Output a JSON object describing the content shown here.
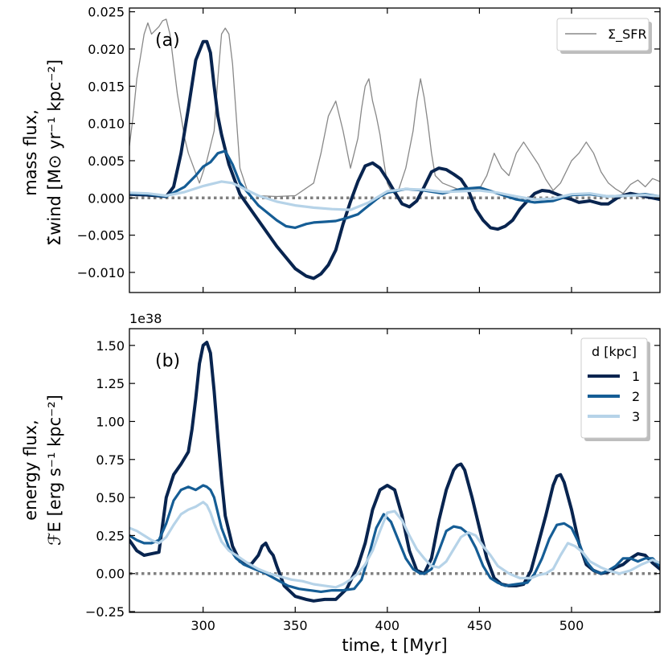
{
  "chart_data": [
    {
      "type": "line",
      "panel_label": "(a)",
      "ylabel_line1": "mass flux,",
      "ylabel_line2": "Σ̇wind [M⊙ yr⁻¹ kpc⁻²]",
      "xlim": [
        260,
        548
      ],
      "ylim": [
        -0.0127,
        0.0255
      ],
      "yticks": [
        -0.01,
        -0.005,
        0.0,
        0.005,
        0.01,
        0.015,
        0.02,
        0.025
      ],
      "ytick_labels": [
        "−0.010",
        "−0.005",
        "0.000",
        "0.005",
        "0.010",
        "0.015",
        "0.020",
        "0.025"
      ],
      "xticks": [
        300,
        350,
        400,
        450,
        500
      ],
      "zero_line": {
        "y": 0,
        "style": "dotted",
        "color": "#808080"
      },
      "legend": {
        "location": "top-right",
        "entries": [
          {
            "label": "Σ_SFR",
            "color": "#888888"
          }
        ]
      },
      "series": [
        {
          "name": "SFR",
          "color": "#888888",
          "width": 1.3,
          "x": [
            260,
            262,
            264,
            266,
            268,
            270,
            272,
            274,
            276,
            278,
            280,
            282,
            284,
            286,
            288,
            290,
            292,
            295,
            298,
            302,
            306,
            308,
            310,
            312,
            314,
            316,
            318,
            320,
            324,
            330,
            340,
            350,
            360,
            364,
            368,
            372,
            376,
            380,
            384,
            386,
            388,
            390,
            392,
            394,
            396,
            398,
            400,
            402,
            404,
            406,
            410,
            414,
            416,
            418,
            420,
            422,
            424,
            426,
            430,
            440,
            450,
            454,
            458,
            462,
            466,
            470,
            474,
            478,
            482,
            486,
            490,
            494,
            500,
            504,
            508,
            512,
            516,
            520,
            524,
            528,
            532,
            536,
            540,
            544,
            548
          ],
          "y": [
            0.007,
            0.011,
            0.016,
            0.019,
            0.022,
            0.0235,
            0.022,
            0.0225,
            0.023,
            0.0238,
            0.024,
            0.022,
            0.018,
            0.014,
            0.011,
            0.008,
            0.006,
            0.004,
            0.002,
            0.005,
            0.009,
            0.016,
            0.022,
            0.0228,
            0.022,
            0.018,
            0.011,
            0.004,
            0.001,
            0.0003,
            0.0002,
            0.0003,
            0.002,
            0.006,
            0.011,
            0.013,
            0.009,
            0.004,
            0.008,
            0.012,
            0.015,
            0.016,
            0.013,
            0.011,
            0.0085,
            0.005,
            0.002,
            0.001,
            0.0005,
            0.001,
            0.004,
            0.009,
            0.013,
            0.016,
            0.0135,
            0.01,
            0.006,
            0.003,
            0.002,
            0.001,
            0.0012,
            0.003,
            0.006,
            0.004,
            0.003,
            0.006,
            0.0075,
            0.006,
            0.0045,
            0.0025,
            0.001,
            0.002,
            0.005,
            0.006,
            0.0075,
            0.006,
            0.0035,
            0.002,
            0.0012,
            0.0006,
            0.0018,
            0.0024,
            0.0015,
            0.0026,
            0.0022
          ]
        },
        {
          "name": "d = 1 kpc",
          "color": "#08244f",
          "width": 4,
          "x": [
            260,
            270,
            280,
            284,
            288,
            292,
            296,
            300,
            302,
            304,
            306,
            308,
            310,
            314,
            320,
            330,
            340,
            350,
            356,
            360,
            364,
            368,
            372,
            376,
            380,
            384,
            388,
            392,
            396,
            400,
            404,
            408,
            412,
            416,
            420,
            424,
            428,
            432,
            436,
            440,
            444,
            448,
            452,
            456,
            460,
            464,
            468,
            472,
            476,
            480,
            484,
            488,
            492,
            496,
            500,
            504,
            510,
            516,
            520,
            526,
            532,
            540,
            548
          ],
          "y": [
            0.0005,
            0.0004,
            0.0002,
            0.0015,
            0.006,
            0.012,
            0.0185,
            0.021,
            0.021,
            0.0195,
            0.015,
            0.011,
            0.0085,
            0.0045,
            0.0005,
            -0.003,
            -0.0065,
            -0.0095,
            -0.0105,
            -0.0108,
            -0.0102,
            -0.009,
            -0.007,
            -0.0035,
            -0.0005,
            0.0022,
            0.0043,
            0.0047,
            0.004,
            0.0025,
            0.0008,
            -0.0008,
            -0.0012,
            -0.0004,
            0.0015,
            0.0035,
            0.004,
            0.0038,
            0.0032,
            0.0025,
            0.001,
            -0.0015,
            -0.003,
            -0.004,
            -0.0042,
            -0.0038,
            -0.003,
            -0.0015,
            -0.0004,
            0.0006,
            0.001,
            0.0009,
            0.0005,
            0.0001,
            -0.0002,
            -0.0006,
            -0.0004,
            -0.0008,
            -0.0008,
            0.0002,
            0.0006,
            0.0002,
            -0.0002
          ]
        },
        {
          "name": "d = 2 kpc",
          "color": "#155d95",
          "width": 3.2,
          "x": [
            260,
            270,
            280,
            290,
            296,
            300,
            304,
            308,
            312,
            316,
            320,
            330,
            340,
            345,
            350,
            356,
            360,
            366,
            372,
            378,
            384,
            388,
            392,
            396,
            400,
            410,
            420,
            430,
            440,
            450,
            460,
            470,
            480,
            490,
            500,
            510,
            520,
            530,
            540,
            548
          ],
          "y": [
            0.0006,
            0.0005,
            0.0002,
            0.0015,
            0.003,
            0.0042,
            0.0048,
            0.006,
            0.0063,
            0.0045,
            0.002,
            -0.001,
            -0.003,
            -0.0038,
            -0.004,
            -0.0035,
            -0.0033,
            -0.0032,
            -0.0031,
            -0.0027,
            -0.0022,
            -0.0014,
            -0.0006,
            0.0002,
            0.0007,
            0.0012,
            0.001,
            0.0006,
            0.0012,
            0.0014,
            0.0006,
            -0.0002,
            -0.0006,
            -0.0004,
            0.0004,
            0.0005,
            0.0002,
            0.0003,
            0.0005,
            0.0002
          ]
        },
        {
          "name": "d = 3 kpc",
          "color": "#b6d3e8",
          "width": 3.2,
          "x": [
            260,
            270,
            280,
            290,
            300,
            310,
            316,
            320,
            330,
            340,
            350,
            360,
            370,
            380,
            390,
            400,
            410,
            420,
            430,
            440,
            450,
            460,
            470,
            480,
            490,
            500,
            510,
            520,
            530,
            540,
            548
          ],
          "y": [
            0.0007,
            0.0006,
            0.0003,
            0.0008,
            0.0016,
            0.0022,
            0.002,
            0.0015,
            0.0003,
            -0.0005,
            -0.001,
            -0.0013,
            -0.0015,
            -0.0016,
            -0.0006,
            0.0009,
            0.0012,
            0.0011,
            0.0008,
            0.0009,
            0.001,
            0.0007,
            0.0002,
            -0.0002,
            -0.0001,
            0.0005,
            0.0006,
            0.0002,
            0.0003,
            0.0004,
            0.0002
          ]
        }
      ]
    },
    {
      "type": "line",
      "panel_label": "(b)",
      "ylabel_line1": "energy flux,",
      "ylabel_line2": "ℱE [erg s⁻¹ kpc⁻²]",
      "offset_text": "1e38",
      "xlabel": "time, t [Myr]",
      "xlim": [
        260,
        548
      ],
      "ylim": [
        -0.255,
        1.61
      ],
      "yticks": [
        -0.25,
        0.0,
        0.25,
        0.5,
        0.75,
        1.0,
        1.25,
        1.5
      ],
      "ytick_labels": [
        "−0.25",
        "0.00",
        "0.25",
        "0.50",
        "0.75",
        "1.00",
        "1.25",
        "1.50"
      ],
      "xticks": [
        300,
        350,
        400,
        450,
        500
      ],
      "xtick_labels": [
        "300",
        "350",
        "400",
        "450",
        "500"
      ],
      "zero_line": {
        "y": 0,
        "style": "dotted",
        "color": "#808080"
      },
      "legend": {
        "location": "top-right",
        "title": "d [kpc]",
        "entries": [
          {
            "label": "1",
            "color": "#08244f"
          },
          {
            "label": "2",
            "color": "#155d95"
          },
          {
            "label": "3",
            "color": "#b6d3e8"
          }
        ]
      },
      "series": [
        {
          "name": "d = 1 kpc",
          "color": "#08244f",
          "width": 4,
          "x": [
            260,
            264,
            268,
            272,
            276,
            280,
            284,
            288,
            292,
            294,
            296,
            298,
            300,
            302,
            304,
            306,
            308,
            310,
            312,
            316,
            320,
            326,
            330,
            332,
            334,
            336,
            338,
            340,
            344,
            350,
            356,
            360,
            366,
            372,
            378,
            384,
            388,
            392,
            396,
            400,
            404,
            408,
            412,
            416,
            420,
            424,
            428,
            432,
            436,
            438,
            440,
            442,
            446,
            450,
            454,
            458,
            462,
            466,
            470,
            474,
            478,
            482,
            486,
            490,
            492,
            494,
            496,
            500,
            504,
            508,
            512,
            516,
            520,
            524,
            528,
            532,
            536,
            540,
            544,
            548
          ],
          "y": [
            0.22,
            0.15,
            0.12,
            0.13,
            0.14,
            0.5,
            0.65,
            0.72,
            0.8,
            0.95,
            1.15,
            1.38,
            1.5,
            1.52,
            1.45,
            1.2,
            0.9,
            0.62,
            0.38,
            0.18,
            0.08,
            0.06,
            0.12,
            0.18,
            0.2,
            0.15,
            0.12,
            0.05,
            -0.08,
            -0.15,
            -0.17,
            -0.18,
            -0.17,
            -0.17,
            -0.1,
            0.05,
            0.2,
            0.42,
            0.55,
            0.58,
            0.55,
            0.38,
            0.15,
            0.02,
            0.0,
            0.1,
            0.35,
            0.55,
            0.68,
            0.71,
            0.72,
            0.68,
            0.5,
            0.3,
            0.1,
            -0.03,
            -0.07,
            -0.08,
            -0.08,
            -0.07,
            0.02,
            0.2,
            0.38,
            0.58,
            0.64,
            0.65,
            0.6,
            0.42,
            0.2,
            0.06,
            0.02,
            0.0,
            0.01,
            0.04,
            0.06,
            0.1,
            0.13,
            0.12,
            0.07,
            0.03
          ]
        },
        {
          "name": "d = 2 kpc",
          "color": "#155d95",
          "width": 3.2,
          "x": [
            260,
            264,
            268,
            272,
            276,
            280,
            284,
            288,
            292,
            296,
            300,
            302,
            304,
            306,
            310,
            314,
            318,
            322,
            328,
            334,
            340,
            346,
            352,
            358,
            364,
            370,
            376,
            382,
            386,
            390,
            394,
            398,
            402,
            406,
            410,
            414,
            418,
            420,
            424,
            428,
            432,
            436,
            440,
            444,
            448,
            452,
            456,
            460,
            464,
            470,
            476,
            480,
            484,
            488,
            492,
            496,
            500,
            504,
            508,
            512,
            516,
            520,
            524,
            528,
            532,
            536,
            540,
            544,
            548
          ],
          "y": [
            0.25,
            0.22,
            0.2,
            0.2,
            0.22,
            0.33,
            0.48,
            0.55,
            0.57,
            0.55,
            0.58,
            0.57,
            0.55,
            0.5,
            0.3,
            0.17,
            0.1,
            0.06,
            0.03,
            0.0,
            -0.04,
            -0.08,
            -0.1,
            -0.11,
            -0.12,
            -0.11,
            -0.11,
            -0.1,
            -0.04,
            0.12,
            0.3,
            0.39,
            0.34,
            0.22,
            0.1,
            0.03,
            0.0,
            0.0,
            0.03,
            0.15,
            0.28,
            0.31,
            0.3,
            0.26,
            0.17,
            0.05,
            -0.03,
            -0.06,
            -0.08,
            -0.07,
            -0.06,
            0.0,
            0.1,
            0.23,
            0.32,
            0.33,
            0.3,
            0.2,
            0.08,
            0.02,
            0.0,
            0.02,
            0.05,
            0.1,
            0.1,
            0.08,
            0.1,
            0.1,
            0.05
          ]
        },
        {
          "name": "d = 3 kpc",
          "color": "#b6d3e8",
          "width": 3.2,
          "x": [
            260,
            264,
            268,
            272,
            276,
            280,
            284,
            288,
            292,
            296,
            300,
            302,
            304,
            306,
            310,
            314,
            318,
            324,
            330,
            336,
            342,
            348,
            354,
            360,
            366,
            372,
            376,
            380,
            384,
            388,
            392,
            396,
            400,
            404,
            408,
            412,
            416,
            420,
            424,
            428,
            432,
            436,
            440,
            444,
            448,
            452,
            456,
            460,
            466,
            472,
            478,
            482,
            486,
            490,
            494,
            498,
            502,
            506,
            510,
            516,
            520,
            526,
            532,
            538,
            544,
            548
          ],
          "y": [
            0.3,
            0.28,
            0.25,
            0.22,
            0.2,
            0.24,
            0.32,
            0.39,
            0.42,
            0.44,
            0.47,
            0.45,
            0.4,
            0.33,
            0.21,
            0.15,
            0.12,
            0.07,
            0.03,
            0.0,
            -0.02,
            -0.04,
            -0.05,
            -0.07,
            -0.08,
            -0.09,
            -0.07,
            -0.04,
            0.0,
            0.06,
            0.15,
            0.28,
            0.4,
            0.41,
            0.35,
            0.25,
            0.16,
            0.1,
            0.05,
            0.04,
            0.08,
            0.16,
            0.24,
            0.27,
            0.25,
            0.18,
            0.12,
            0.05,
            0.0,
            -0.03,
            -0.03,
            -0.01,
            0.0,
            0.03,
            0.12,
            0.2,
            0.18,
            0.14,
            0.08,
            0.04,
            0.02,
            0.0,
            0.02,
            0.06,
            0.09,
            0.07
          ]
        }
      ]
    }
  ]
}
